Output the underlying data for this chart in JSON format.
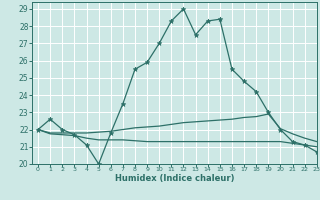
{
  "xlabel": "Humidex (Indice chaleur)",
  "bg_color": "#cde8e5",
  "grid_color": "#ffffff",
  "line_color": "#2d7068",
  "xlim": [
    -0.5,
    23
  ],
  "ylim": [
    20,
    29.4
  ],
  "xticks": [
    0,
    1,
    2,
    3,
    4,
    5,
    6,
    7,
    8,
    9,
    10,
    11,
    12,
    13,
    14,
    15,
    16,
    17,
    18,
    19,
    20,
    21,
    22,
    23
  ],
  "yticks": [
    20,
    21,
    22,
    23,
    24,
    25,
    26,
    27,
    28,
    29
  ],
  "line1_x": [
    0,
    1,
    2,
    3,
    4,
    5,
    6,
    7,
    8,
    9,
    10,
    11,
    12,
    13,
    14,
    15,
    16,
    17,
    18,
    19,
    20,
    21,
    22,
    23
  ],
  "line1_y": [
    22.0,
    22.6,
    22.0,
    21.7,
    21.1,
    20.0,
    21.8,
    23.5,
    25.5,
    25.9,
    27.0,
    28.3,
    29.0,
    27.5,
    28.3,
    28.4,
    25.5,
    24.8,
    24.2,
    23.0,
    22.0,
    21.3,
    21.1,
    20.7
  ],
  "line2_x": [
    0,
    1,
    2,
    3,
    4,
    5,
    6,
    7,
    8,
    9,
    10,
    11,
    12,
    13,
    14,
    15,
    16,
    17,
    18,
    19,
    20,
    21,
    22,
    23
  ],
  "line2_y": [
    22.0,
    21.8,
    21.8,
    21.8,
    21.8,
    21.85,
    21.9,
    22.0,
    22.1,
    22.15,
    22.2,
    22.3,
    22.4,
    22.45,
    22.5,
    22.55,
    22.6,
    22.7,
    22.75,
    22.9,
    22.05,
    21.75,
    21.5,
    21.3
  ],
  "line3_x": [
    0,
    1,
    2,
    3,
    4,
    5,
    6,
    7,
    8,
    9,
    10,
    11,
    12,
    13,
    14,
    15,
    16,
    17,
    18,
    19,
    20,
    21,
    22,
    23
  ],
  "line3_y": [
    22.0,
    21.75,
    21.7,
    21.65,
    21.5,
    21.4,
    21.4,
    21.4,
    21.35,
    21.3,
    21.3,
    21.3,
    21.3,
    21.3,
    21.3,
    21.3,
    21.3,
    21.3,
    21.3,
    21.3,
    21.3,
    21.2,
    21.1,
    21.0
  ]
}
